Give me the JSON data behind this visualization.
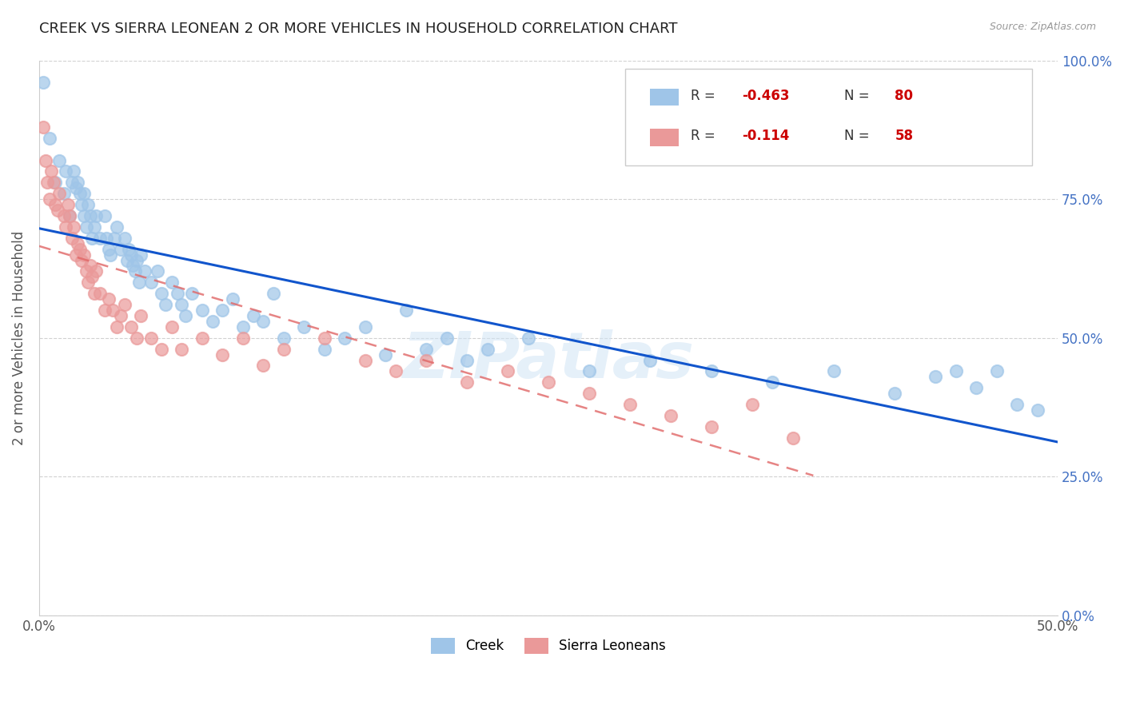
{
  "title": "CREEK VS SIERRA LEONEAN 2 OR MORE VEHICLES IN HOUSEHOLD CORRELATION CHART",
  "source": "Source: ZipAtlas.com",
  "ylabel": "2 or more Vehicles in Household",
  "x_min": 0.0,
  "x_max": 0.5,
  "y_min": 0.0,
  "y_max": 1.0,
  "creek_R": -0.463,
  "creek_N": 80,
  "sierra_R": -0.114,
  "sierra_N": 58,
  "creek_color": "#9fc5e8",
  "sierra_color": "#ea9999",
  "creek_line_color": "#1155cc",
  "sierra_line_color": "#e06666",
  "watermark": "ZIPatlas",
  "creek_scatter_x": [
    0.002,
    0.005,
    0.008,
    0.01,
    0.012,
    0.013,
    0.015,
    0.016,
    0.017,
    0.018,
    0.019,
    0.02,
    0.021,
    0.022,
    0.022,
    0.023,
    0.024,
    0.025,
    0.026,
    0.027,
    0.028,
    0.03,
    0.032,
    0.033,
    0.034,
    0.035,
    0.037,
    0.038,
    0.04,
    0.042,
    0.043,
    0.044,
    0.045,
    0.046,
    0.047,
    0.048,
    0.049,
    0.05,
    0.052,
    0.055,
    0.058,
    0.06,
    0.062,
    0.065,
    0.068,
    0.07,
    0.072,
    0.075,
    0.08,
    0.085,
    0.09,
    0.095,
    0.1,
    0.105,
    0.11,
    0.115,
    0.12,
    0.13,
    0.14,
    0.15,
    0.16,
    0.17,
    0.18,
    0.19,
    0.2,
    0.21,
    0.22,
    0.24,
    0.27,
    0.3,
    0.33,
    0.36,
    0.39,
    0.42,
    0.44,
    0.45,
    0.46,
    0.47,
    0.48,
    0.49
  ],
  "creek_scatter_y": [
    0.96,
    0.86,
    0.78,
    0.82,
    0.76,
    0.8,
    0.72,
    0.78,
    0.8,
    0.77,
    0.78,
    0.76,
    0.74,
    0.72,
    0.76,
    0.7,
    0.74,
    0.72,
    0.68,
    0.7,
    0.72,
    0.68,
    0.72,
    0.68,
    0.66,
    0.65,
    0.68,
    0.7,
    0.66,
    0.68,
    0.64,
    0.66,
    0.65,
    0.63,
    0.62,
    0.64,
    0.6,
    0.65,
    0.62,
    0.6,
    0.62,
    0.58,
    0.56,
    0.6,
    0.58,
    0.56,
    0.54,
    0.58,
    0.55,
    0.53,
    0.55,
    0.57,
    0.52,
    0.54,
    0.53,
    0.58,
    0.5,
    0.52,
    0.48,
    0.5,
    0.52,
    0.47,
    0.55,
    0.48,
    0.5,
    0.46,
    0.48,
    0.5,
    0.44,
    0.46,
    0.44,
    0.42,
    0.44,
    0.4,
    0.43,
    0.44,
    0.41,
    0.44,
    0.38,
    0.37
  ],
  "sierra_scatter_x": [
    0.002,
    0.003,
    0.004,
    0.005,
    0.006,
    0.007,
    0.008,
    0.009,
    0.01,
    0.012,
    0.013,
    0.014,
    0.015,
    0.016,
    0.017,
    0.018,
    0.019,
    0.02,
    0.021,
    0.022,
    0.023,
    0.024,
    0.025,
    0.026,
    0.027,
    0.028,
    0.03,
    0.032,
    0.034,
    0.036,
    0.038,
    0.04,
    0.042,
    0.045,
    0.048,
    0.05,
    0.055,
    0.06,
    0.065,
    0.07,
    0.08,
    0.09,
    0.1,
    0.11,
    0.12,
    0.14,
    0.16,
    0.175,
    0.19,
    0.21,
    0.23,
    0.25,
    0.27,
    0.29,
    0.31,
    0.33,
    0.35,
    0.37
  ],
  "sierra_scatter_y": [
    0.88,
    0.82,
    0.78,
    0.75,
    0.8,
    0.78,
    0.74,
    0.73,
    0.76,
    0.72,
    0.7,
    0.74,
    0.72,
    0.68,
    0.7,
    0.65,
    0.67,
    0.66,
    0.64,
    0.65,
    0.62,
    0.6,
    0.63,
    0.61,
    0.58,
    0.62,
    0.58,
    0.55,
    0.57,
    0.55,
    0.52,
    0.54,
    0.56,
    0.52,
    0.5,
    0.54,
    0.5,
    0.48,
    0.52,
    0.48,
    0.5,
    0.47,
    0.5,
    0.45,
    0.48,
    0.5,
    0.46,
    0.44,
    0.46,
    0.42,
    0.44,
    0.42,
    0.4,
    0.38,
    0.36,
    0.34,
    0.38,
    0.32
  ]
}
